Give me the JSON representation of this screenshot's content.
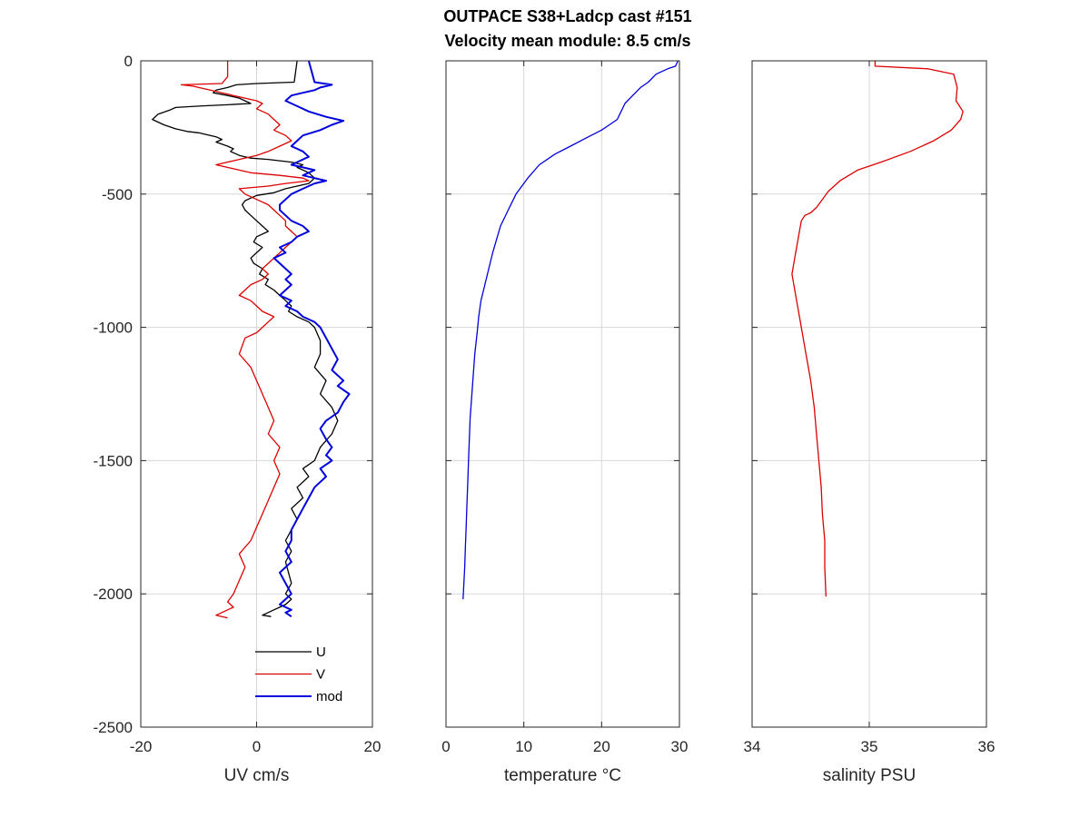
{
  "chart_data": [
    {
      "type": "line",
      "title_lines": [
        "OUTPACE S38+Ladcp cast #151",
        "Velocity mean module:  8.5 cm/s"
      ],
      "xlabel": "UV cm/s",
      "ylabel": "",
      "xlim": [
        -20,
        20
      ],
      "ylim": [
        -2500,
        0
      ],
      "xticks": [
        -20,
        0,
        20
      ],
      "yticks": [
        0,
        -500,
        -1000,
        -1500,
        -2000,
        -2500
      ],
      "grid": true,
      "legend": "bottom-right",
      "series": [
        {
          "name": "U",
          "color": "#000000",
          "x": [
            7,
            6.5,
            0,
            -3.5,
            -5,
            -7,
            -7.5,
            -5,
            -3,
            -1,
            -5,
            -10,
            -14,
            -15,
            -17,
            -18,
            -16,
            -14,
            -12,
            -10,
            -9,
            -7,
            -6,
            -7,
            -5,
            -4,
            -4.5,
            -3,
            -1,
            2,
            4,
            6,
            8,
            7,
            9,
            10,
            9,
            5,
            3,
            0,
            -1,
            -2,
            -2.5,
            -2,
            -1,
            0,
            1,
            2,
            0,
            -0.5,
            1,
            0,
            -1,
            -0.5,
            1,
            0.5,
            2,
            1.5,
            3,
            4,
            5,
            6,
            5.5,
            7,
            9,
            10,
            11,
            11,
            10,
            12,
            11,
            13,
            14,
            13,
            11,
            10,
            8,
            9,
            7,
            8,
            6,
            7,
            6,
            5,
            6,
            5,
            5.5,
            6,
            5,
            6,
            5,
            4,
            3,
            1,
            2.5
          ],
          "y": [
            0,
            -80,
            -85,
            -90,
            -100,
            -110,
            -120,
            -130,
            -140,
            -160,
            -165,
            -170,
            -175,
            -185,
            -200,
            -220,
            -240,
            -255,
            -265,
            -270,
            -275,
            -285,
            -295,
            -305,
            -320,
            -330,
            -340,
            -355,
            -365,
            -370,
            -375,
            -380,
            -390,
            -400,
            -420,
            -440,
            -460,
            -480,
            -495,
            -505,
            -515,
            -525,
            -540,
            -560,
            -580,
            -600,
            -620,
            -640,
            -660,
            -680,
            -700,
            -720,
            -740,
            -760,
            -780,
            -800,
            -820,
            -840,
            -860,
            -880,
            -900,
            -920,
            -940,
            -960,
            -980,
            -1000,
            -1050,
            -1100,
            -1150,
            -1200,
            -1250,
            -1300,
            -1350,
            -1400,
            -1450,
            -1500,
            -1530,
            -1560,
            -1600,
            -1640,
            -1680,
            -1720,
            -1760,
            -1800,
            -1840,
            -1880,
            -1920,
            -1960,
            -2000,
            -2020,
            -2040,
            -2050,
            -2060,
            -2080,
            -2085
          ]
        },
        {
          "name": "V",
          "color": "#dd0000",
          "x": [
            -5,
            -5,
            -6,
            -13,
            -11,
            -10,
            -8,
            -6,
            -4,
            -2,
            0,
            1,
            0,
            2,
            3,
            4,
            3,
            5,
            6,
            4,
            2,
            0,
            -3,
            -7,
            -4,
            -1,
            4,
            8,
            9,
            5,
            2,
            -3,
            -2,
            0,
            2,
            3,
            4,
            5,
            5,
            6,
            7,
            6,
            5,
            4,
            3,
            2,
            1,
            2,
            1,
            -1,
            -2,
            -3,
            -1,
            0,
            1,
            3,
            2,
            1,
            0,
            -2,
            -3,
            -1,
            0,
            1,
            2,
            3,
            2,
            4,
            3,
            4,
            3,
            2,
            1,
            0,
            -1,
            -3,
            -2,
            -3,
            -4,
            -5,
            -4,
            -5,
            -6,
            -7,
            -6,
            -5
          ],
          "y": [
            0,
            -60,
            -85,
            -90,
            -95,
            -100,
            -110,
            -120,
            -130,
            -140,
            -150,
            -160,
            -180,
            -200,
            -220,
            -240,
            -260,
            -280,
            -300,
            -320,
            -340,
            -355,
            -370,
            -390,
            -405,
            -420,
            -430,
            -440,
            -450,
            -460,
            -470,
            -480,
            -500,
            -520,
            -540,
            -560,
            -580,
            -600,
            -620,
            -640,
            -660,
            -680,
            -700,
            -720,
            -740,
            -760,
            -780,
            -800,
            -820,
            -840,
            -860,
            -880,
            -900,
            -920,
            -940,
            -960,
            -980,
            -1000,
            -1020,
            -1040,
            -1100,
            -1150,
            -1200,
            -1250,
            -1300,
            -1350,
            -1400,
            -1450,
            -1500,
            -1550,
            -1600,
            -1650,
            -1700,
            -1750,
            -1800,
            -1850,
            -1900,
            -1950,
            -2000,
            -2030,
            -2050,
            -2060,
            -2070,
            -2080,
            -2085,
            -2090
          ]
        },
        {
          "name": "mod",
          "color": "#0000dd",
          "x": [
            9,
            9.5,
            10,
            13,
            11,
            10,
            8,
            6,
            5,
            7,
            9,
            12,
            15,
            13,
            11,
            8,
            7,
            6,
            8,
            9,
            7,
            6,
            8,
            10,
            9,
            8,
            10,
            12,
            10,
            8,
            6,
            5,
            4,
            4,
            5,
            6,
            8,
            9,
            7,
            6,
            4,
            5,
            3,
            4,
            5,
            6,
            5,
            6,
            5,
            4,
            6,
            5,
            7,
            8,
            10,
            11,
            12,
            13,
            14,
            13,
            15,
            14,
            16,
            15,
            14,
            12,
            11,
            12,
            13,
            12,
            13,
            11,
            12,
            10,
            9,
            8,
            7,
            6,
            6,
            5,
            6,
            4,
            5,
            6,
            5,
            4,
            5,
            6,
            5,
            6
          ],
          "y": [
            0,
            -40,
            -80,
            -90,
            -100,
            -110,
            -120,
            -130,
            -150,
            -170,
            -190,
            -210,
            -225,
            -240,
            -260,
            -280,
            -300,
            -320,
            -340,
            -360,
            -380,
            -390,
            -400,
            -410,
            -420,
            -430,
            -440,
            -450,
            -460,
            -480,
            -500,
            -520,
            -540,
            -560,
            -580,
            -600,
            -620,
            -640,
            -660,
            -680,
            -700,
            -720,
            -740,
            -760,
            -780,
            -800,
            -820,
            -840,
            -860,
            -880,
            -900,
            -920,
            -940,
            -960,
            -980,
            -1000,
            -1040,
            -1080,
            -1120,
            -1160,
            -1200,
            -1220,
            -1250,
            -1280,
            -1320,
            -1350,
            -1380,
            -1420,
            -1450,
            -1480,
            -1500,
            -1530,
            -1560,
            -1600,
            -1640,
            -1680,
            -1720,
            -1760,
            -1800,
            -1840,
            -1880,
            -1920,
            -1960,
            -2000,
            -2020,
            -2040,
            -2050,
            -2060,
            -2070,
            -2085
          ]
        }
      ]
    },
    {
      "type": "line",
      "xlabel": "temperature °C",
      "ylabel": "",
      "xlim": [
        0,
        30
      ],
      "ylim": [
        -2500,
        0
      ],
      "xticks": [
        0,
        10,
        20,
        30
      ],
      "yticks": [
        0,
        -500,
        -1000,
        -1500,
        -2000,
        -2500
      ],
      "grid": true,
      "series": [
        {
          "color": "#0000dd",
          "x": [
            29.8,
            29.5,
            28.5,
            27,
            26,
            25,
            24,
            23,
            22.5,
            22,
            21,
            20,
            18,
            16,
            14,
            12,
            10.5,
            9,
            8,
            7,
            6.5,
            6,
            5.5,
            5,
            4.5,
            4.2,
            4,
            3.7,
            3.5,
            3.3,
            3.1,
            3,
            2.9,
            2.8,
            2.7,
            2.6,
            2.5,
            2.4,
            2.3,
            2.2
          ],
          "y": [
            0,
            -20,
            -30,
            -50,
            -80,
            -100,
            -130,
            -160,
            -190,
            -220,
            -240,
            -260,
            -290,
            -320,
            -350,
            -390,
            -440,
            -500,
            -560,
            -620,
            -670,
            -720,
            -780,
            -840,
            -900,
            -960,
            -1020,
            -1100,
            -1180,
            -1260,
            -1340,
            -1420,
            -1500,
            -1580,
            -1660,
            -1740,
            -1820,
            -1900,
            -1960,
            -2020
          ]
        }
      ]
    },
    {
      "type": "line",
      "xlabel": "salinity PSU",
      "ylabel": "",
      "xlim": [
        34,
        36
      ],
      "ylim": [
        -2500,
        0
      ],
      "xticks": [
        34,
        35,
        36
      ],
      "yticks": [
        0,
        -500,
        -1000,
        -1500,
        -2000,
        -2500
      ],
      "grid": true,
      "series": [
        {
          "color": "#dd0000",
          "x": [
            35.05,
            35.05,
            35.5,
            35.72,
            35.75,
            35.74,
            35.8,
            35.78,
            35.7,
            35.55,
            35.35,
            35.1,
            34.9,
            34.75,
            34.65,
            34.6,
            34.55,
            34.5,
            34.45,
            34.42,
            34.4,
            34.38,
            34.36,
            34.34,
            34.38,
            34.42,
            34.46,
            34.5,
            34.53,
            34.55,
            34.57,
            34.59,
            34.6,
            34.62,
            34.62,
            34.63
          ],
          "y": [
            0,
            -20,
            -30,
            -50,
            -100,
            -150,
            -190,
            -220,
            -260,
            -300,
            -340,
            -380,
            -410,
            -450,
            -490,
            -520,
            -550,
            -570,
            -580,
            -600,
            -650,
            -700,
            -750,
            -800,
            -900,
            -1000,
            -1100,
            -1200,
            -1300,
            -1400,
            -1500,
            -1600,
            -1700,
            -1800,
            -1900,
            -2010
          ]
        }
      ]
    }
  ]
}
